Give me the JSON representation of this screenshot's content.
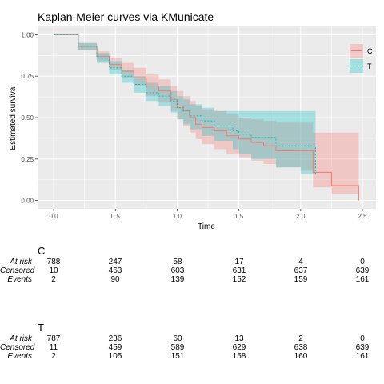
{
  "chart_data": {
    "type": "line",
    "title": "Kaplan-Meier curves via KMunicate",
    "xlabel": "Time",
    "ylabel": "Estimated survival",
    "xlim": [
      -0.13,
      2.61
    ],
    "ylim": [
      -0.05,
      1.05
    ],
    "x_ticks": [
      "0.0",
      "0.5",
      "1.0",
      "1.5",
      "2.0",
      "2.5"
    ],
    "x_tick_values": [
      0,
      0.5,
      1,
      1.5,
      2,
      2.5
    ],
    "y_ticks": [
      "0.00",
      "0.25",
      "0.50",
      "0.75",
      "1.00"
    ],
    "y_tick_values": [
      0,
      0.25,
      0.5,
      0.75,
      1
    ],
    "grid": true,
    "legend_position": "top-right",
    "series": [
      {
        "name": "C",
        "color": "#F8766D",
        "line": "solid",
        "x": [
          0,
          0.2,
          0.35,
          0.45,
          0.55,
          0.65,
          0.75,
          0.85,
          0.95,
          1.0,
          1.05,
          1.1,
          1.15,
          1.2,
          1.3,
          1.4,
          1.5,
          1.6,
          1.7,
          1.8,
          2.0,
          2.1,
          2.25,
          2.35,
          2.47
        ],
        "y": [
          1.0,
          0.93,
          0.87,
          0.82,
          0.78,
          0.74,
          0.69,
          0.66,
          0.61,
          0.57,
          0.54,
          0.5,
          0.46,
          0.44,
          0.42,
          0.39,
          0.37,
          0.35,
          0.33,
          0.3,
          0.3,
          0.17,
          0.09,
          0.09,
          0.0
        ],
        "upper": [
          1.0,
          0.95,
          0.9,
          0.86,
          0.83,
          0.8,
          0.76,
          0.73,
          0.69,
          0.66,
          0.63,
          0.6,
          0.57,
          0.55,
          0.54,
          0.52,
          0.5,
          0.49,
          0.48,
          0.47,
          0.47,
          0.41,
          0.41,
          0.41,
          0.41
        ],
        "lower": [
          1.0,
          0.91,
          0.84,
          0.79,
          0.74,
          0.69,
          0.63,
          0.59,
          0.54,
          0.49,
          0.45,
          0.41,
          0.37,
          0.34,
          0.31,
          0.28,
          0.26,
          0.24,
          0.22,
          0.2,
          0.18,
          0.08,
          0.04,
          0.04,
          0.04
        ]
      },
      {
        "name": "T",
        "color": "#00BFC4",
        "line": "dotted",
        "x": [
          0,
          0.2,
          0.35,
          0.45,
          0.55,
          0.65,
          0.75,
          0.85,
          0.95,
          1.0,
          1.05,
          1.1,
          1.2,
          1.3,
          1.45,
          1.5,
          1.6,
          1.8,
          2.0,
          2.12
        ],
        "y": [
          1.0,
          0.93,
          0.86,
          0.8,
          0.75,
          0.7,
          0.65,
          0.63,
          0.6,
          0.56,
          0.54,
          0.51,
          0.48,
          0.45,
          0.42,
          0.4,
          0.38,
          0.33,
          0.33,
          0.15
        ],
        "upper": [
          1.0,
          0.95,
          0.89,
          0.84,
          0.79,
          0.75,
          0.71,
          0.69,
          0.66,
          0.63,
          0.61,
          0.58,
          0.56,
          0.54,
          0.54,
          0.54,
          0.54,
          0.54,
          0.54,
          0.7
        ],
        "lower": [
          1.0,
          0.91,
          0.83,
          0.76,
          0.71,
          0.65,
          0.6,
          0.57,
          0.53,
          0.49,
          0.46,
          0.43,
          0.39,
          0.36,
          0.31,
          0.28,
          0.25,
          0.2,
          0.16,
          0.04
        ]
      }
    ]
  },
  "risk_table": {
    "row_labels": [
      "At risk",
      "Censored",
      "Events"
    ],
    "groups": [
      {
        "name": "C",
        "at_risk": [
          "788",
          "247",
          "58",
          "17",
          "4",
          "0"
        ],
        "censored": [
          "10",
          "463",
          "603",
          "631",
          "637",
          "639"
        ],
        "events": [
          "2",
          "90",
          "139",
          "152",
          "159",
          "161"
        ]
      },
      {
        "name": "T",
        "at_risk": [
          "787",
          "236",
          "60",
          "13",
          "2",
          "0"
        ],
        "censored": [
          "11",
          "459",
          "589",
          "629",
          "638",
          "639"
        ],
        "events": [
          "2",
          "105",
          "151",
          "158",
          "160",
          "161"
        ]
      }
    ]
  }
}
